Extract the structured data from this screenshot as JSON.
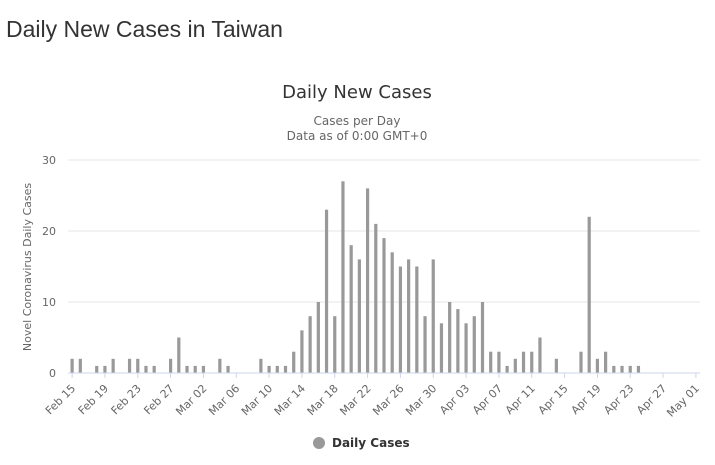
{
  "page": {
    "heading": "Daily New Cases in Taiwan"
  },
  "colors": {
    "bar": "#999999",
    "legend_symbol": "#999999"
  },
  "chart_data": {
    "type": "bar",
    "title": "Daily New Cases",
    "subtitle_line1": "Cases per Day",
    "subtitle_line2": "Data as of 0:00 GMT+0",
    "ylabel": "Novel Coronavirus Daily Cases",
    "xlabel": "",
    "ylim": [
      0,
      30
    ],
    "yticks": [
      0,
      10,
      20,
      30
    ],
    "grid": true,
    "legend_position": "bottom",
    "x_tick_labels": [
      "Feb 15",
      "Feb 19",
      "Feb 23",
      "Feb 27",
      "Mar 02",
      "Mar 06",
      "Mar 10",
      "Mar 14",
      "Mar 18",
      "Mar 22",
      "Mar 26",
      "Mar 30",
      "Apr 03",
      "Apr 07",
      "Apr 11",
      "Apr 15",
      "Apr 19",
      "Apr 23",
      "Apr 27",
      "May 01"
    ],
    "categories": [
      "Feb 15",
      "Feb 16",
      "Feb 17",
      "Feb 18",
      "Feb 19",
      "Feb 20",
      "Feb 21",
      "Feb 22",
      "Feb 23",
      "Feb 24",
      "Feb 25",
      "Feb 26",
      "Feb 27",
      "Feb 28",
      "Feb 29",
      "Mar 01",
      "Mar 02",
      "Mar 03",
      "Mar 04",
      "Mar 05",
      "Mar 06",
      "Mar 07",
      "Mar 08",
      "Mar 09",
      "Mar 10",
      "Mar 11",
      "Mar 12",
      "Mar 13",
      "Mar 14",
      "Mar 15",
      "Mar 16",
      "Mar 17",
      "Mar 18",
      "Mar 19",
      "Mar 20",
      "Mar 21",
      "Mar 22",
      "Mar 23",
      "Mar 24",
      "Mar 25",
      "Mar 26",
      "Mar 27",
      "Mar 28",
      "Mar 29",
      "Mar 30",
      "Mar 31",
      "Apr 01",
      "Apr 02",
      "Apr 03",
      "Apr 04",
      "Apr 05",
      "Apr 06",
      "Apr 07",
      "Apr 08",
      "Apr 09",
      "Apr 10",
      "Apr 11",
      "Apr 12",
      "Apr 13",
      "Apr 14",
      "Apr 15",
      "Apr 16",
      "Apr 17",
      "Apr 18",
      "Apr 19",
      "Apr 20",
      "Apr 21",
      "Apr 22",
      "Apr 23",
      "Apr 24",
      "Apr 25",
      "Apr 26",
      "Apr 27",
      "Apr 28",
      "Apr 29",
      "Apr 30",
      "May 01"
    ],
    "series": [
      {
        "name": "Daily Cases",
        "values": [
          2,
          2,
          0,
          1,
          1,
          2,
          0,
          2,
          2,
          1,
          1,
          0,
          2,
          5,
          1,
          1,
          1,
          0,
          2,
          1,
          0,
          0,
          0,
          2,
          1,
          1,
          1,
          3,
          6,
          8,
          10,
          23,
          8,
          27,
          18,
          16,
          26,
          21,
          19,
          17,
          15,
          16,
          15,
          8,
          16,
          7,
          10,
          9,
          7,
          8,
          10,
          3,
          3,
          1,
          2,
          3,
          3,
          5,
          0,
          2,
          0,
          0,
          3,
          22,
          2,
          3,
          1,
          1,
          1,
          1,
          0,
          0,
          0,
          0,
          0,
          0,
          0
        ]
      }
    ]
  }
}
